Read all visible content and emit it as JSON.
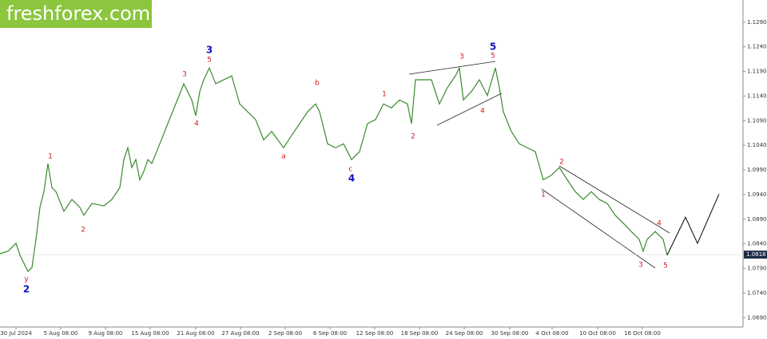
{
  "logo": "freshforex.com",
  "chart_data": {
    "type": "line",
    "x": [
      0,
      10,
      20,
      25,
      35,
      40,
      45,
      50,
      55,
      60,
      65,
      70,
      80,
      90,
      100,
      105,
      115,
      130,
      140,
      150,
      155,
      160,
      165,
      170,
      175,
      180,
      185,
      190,
      200,
      210,
      220,
      230,
      240,
      245,
      250,
      255,
      262,
      270,
      280,
      290,
      300,
      310,
      320,
      330,
      340,
      355,
      365,
      375,
      385,
      395,
      400,
      410,
      420,
      430,
      440,
      450,
      460,
      470,
      480,
      490,
      500,
      510,
      515,
      520,
      530,
      540,
      550,
      560,
      570,
      575,
      580,
      590,
      600,
      610,
      620,
      625,
      630,
      640,
      650,
      660,
      670,
      680,
      690,
      700,
      710,
      720,
      730,
      740,
      750,
      760,
      770,
      780,
      790,
      800,
      805,
      810,
      820,
      830,
      835
    ],
    "series": [
      {
        "color": "#3a8a2e",
        "values": [
          1.082,
          1.0825,
          1.0841,
          1.0817,
          1.0784,
          1.0792,
          1.0849,
          1.0914,
          1.0946,
          1.1003,
          1.0954,
          1.0946,
          1.0906,
          1.093,
          1.0914,
          1.0898,
          1.0922,
          1.0917,
          1.093,
          1.0954,
          1.1011,
          1.1035,
          1.0995,
          1.1011,
          1.097,
          1.0987,
          1.1011,
          1.1003,
          1.1043,
          1.1084,
          1.1124,
          1.1165,
          1.1132,
          1.11,
          1.1149,
          1.1173,
          1.1197,
          1.1165,
          1.1173,
          1.1181,
          1.1124,
          1.1108,
          1.1092,
          1.1051,
          1.1068,
          1.1035,
          1.106,
          1.1084,
          1.1108,
          1.1124,
          1.1108,
          1.1043,
          1.1035,
          1.1043,
          1.1011,
          1.1027,
          1.1084,
          1.1092,
          1.1124,
          1.1116,
          1.1132,
          1.1124,
          1.1084,
          1.1173,
          1.1173,
          1.1173,
          1.1124,
          1.1157,
          1.1181,
          1.1197,
          1.1132,
          1.1149,
          1.1173,
          1.1141,
          1.1197,
          1.1157,
          1.1108,
          1.1068,
          1.1043,
          1.1035,
          1.1027,
          1.097,
          1.0979,
          1.0995,
          1.097,
          1.0946,
          1.093,
          1.0946,
          1.093,
          1.0922,
          1.0898,
          1.0882,
          1.0865,
          1.0849,
          1.0825,
          1.0849,
          1.0865,
          1.0849,
          1.0817
        ]
      }
    ],
    "forecast": {
      "color": "#000000",
      "x": [
        835,
        858,
        873,
        900
      ],
      "values": [
        1.0817,
        1.0894,
        1.0841,
        1.0941
      ]
    },
    "last_price": 1.0818,
    "xlim": [
      0,
      930
    ],
    "ylim": [
      1.0671,
      1.1335
    ],
    "yticks": [
      {
        "value": 1.129,
        "label": "1.1290"
      },
      {
        "value": 1.124,
        "label": "1.1240"
      },
      {
        "value": 1.119,
        "label": "1.1190"
      },
      {
        "value": 1.114,
        "label": "1.1140"
      },
      {
        "value": 1.109,
        "label": "1.1090"
      },
      {
        "value": 1.104,
        "label": "1.1040"
      },
      {
        "value": 1.099,
        "label": "1.0990"
      },
      {
        "value": 1.094,
        "label": "1.0940"
      },
      {
        "value": 1.089,
        "label": "1.0890"
      },
      {
        "value": 1.084,
        "label": "1.0840"
      },
      {
        "value": 1.079,
        "label": "1.0790"
      },
      {
        "value": 1.074,
        "label": "1.0740"
      },
      {
        "value": 1.069,
        "label": "1.0690"
      }
    ],
    "xticks": [
      {
        "value": 20,
        "label": "30 Jul 2024"
      },
      {
        "value": 76,
        "label": "5 Aug 08:00"
      },
      {
        "value": 132,
        "label": "9 Aug 08:00"
      },
      {
        "value": 188,
        "label": "15 Aug 08:00"
      },
      {
        "value": 245,
        "label": "21 Aug 08:00"
      },
      {
        "value": 301,
        "label": "27 Aug 08:00"
      },
      {
        "value": 357,
        "label": "2 Sep 08:00"
      },
      {
        "value": 413,
        "label": "6 Sep 08:00"
      },
      {
        "value": 469,
        "label": "12 Sep 08:00"
      },
      {
        "value": 525,
        "label": "18 Sep 08:00"
      },
      {
        "value": 581,
        "label": "24 Sep 08:00"
      },
      {
        "value": 638,
        "label": "30 Sep 08:00"
      },
      {
        "value": 691,
        "label": "4 Oct 08:00"
      },
      {
        "value": 748,
        "label": "10 Oct 08:00"
      },
      {
        "value": 804,
        "label": "16 Oct 08:00"
      }
    ],
    "annotations": [
      {
        "text": "y",
        "color": "#d32020"
      },
      {
        "text": "2",
        "color": "#1010c0"
      },
      {
        "text": "1",
        "color": "#d32020"
      },
      {
        "text": "2",
        "color": "#d32020"
      },
      {
        "text": "3",
        "color": "#d32020"
      },
      {
        "text": "3",
        "color": "#1010c0"
      },
      {
        "text": "5",
        "color": "#d32020"
      },
      {
        "text": "4",
        "color": "#d32020"
      },
      {
        "text": "a",
        "color": "#d32020"
      },
      {
        "text": "b",
        "color": "#d32020"
      },
      {
        "text": "c",
        "color": "#d32020"
      },
      {
        "text": "4",
        "color": "#1010c0"
      },
      {
        "text": "1",
        "color": "#d32020"
      },
      {
        "text": "2",
        "color": "#d32020"
      },
      {
        "text": "3",
        "color": "#d32020"
      },
      {
        "text": "5",
        "color": "#1010c0"
      },
      {
        "text": "5",
        "color": "#d32020"
      },
      {
        "text": "4",
        "color": "#d32020"
      },
      {
        "text": "1",
        "color": "#d32020"
      },
      {
        "text": "2",
        "color": "#d32020"
      },
      {
        "text": "3",
        "color": "#d32020"
      },
      {
        "text": "4",
        "color": "#d32020"
      },
      {
        "text": "5",
        "color": "#d32020"
      }
    ]
  }
}
